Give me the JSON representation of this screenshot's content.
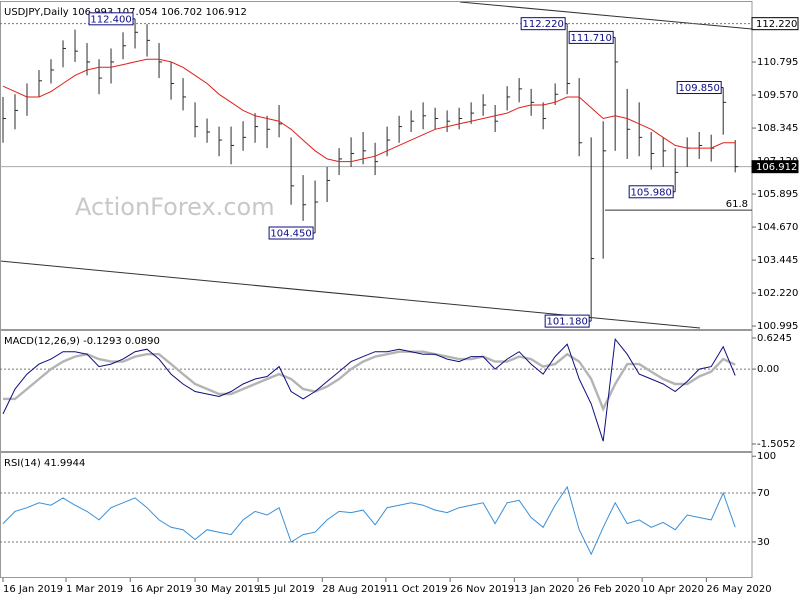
{
  "chart_data": [
    {
      "type": "ohlc",
      "title": "USDJPY,Daily  106.993 107.054 106.702 106.912",
      "watermark": "ActionForex.com",
      "color": "#2b2b2b",
      "high": [
        109.5,
        109.6,
        110.0,
        110.5,
        110.9,
        111.6,
        112.0,
        111.5,
        110.9,
        111.3,
        111.9,
        112.4,
        112.2,
        111.5,
        110.8,
        110.2,
        109.3,
        108.7,
        108.4,
        108.4,
        108.6,
        108.9,
        108.8,
        109.2,
        108.0,
        106.6,
        106.4,
        106.9,
        107.6,
        108.0,
        108.2,
        107.8,
        108.4,
        108.8,
        109.0,
        109.3,
        109.1,
        109.0,
        109.1,
        109.3,
        109.6,
        109.2,
        109.9,
        110.2,
        109.8,
        109.3,
        110.0,
        112.22,
        110.2,
        108.0,
        108.6,
        111.71,
        109.8,
        109.3,
        108.2,
        108.0,
        107.6,
        108.0,
        108.2,
        108.1,
        109.85,
        107.9
      ],
      "low": [
        107.8,
        108.3,
        108.8,
        109.5,
        110.0,
        110.6,
        110.8,
        110.3,
        109.6,
        110.0,
        110.9,
        111.3,
        111.0,
        110.2,
        109.4,
        109.0,
        108.0,
        107.8,
        107.3,
        107.0,
        107.5,
        107.8,
        107.6,
        108.0,
        105.5,
        104.9,
        104.45,
        105.6,
        106.6,
        106.9,
        107.0,
        106.6,
        107.3,
        107.8,
        108.2,
        108.3,
        108.3,
        108.2,
        108.3,
        108.5,
        108.8,
        108.2,
        109.0,
        109.3,
        108.8,
        108.3,
        109.2,
        109.6,
        107.3,
        101.18,
        103.5,
        107.5,
        107.2,
        107.3,
        106.8,
        106.9,
        105.98,
        106.9,
        107.2,
        107.1,
        108.1,
        106.7
      ],
      "close": [
        108.7,
        109.0,
        109.5,
        110.1,
        110.5,
        111.3,
        111.2,
        110.8,
        110.2,
        110.8,
        111.4,
        111.9,
        111.6,
        110.8,
        110.0,
        109.5,
        108.4,
        108.2,
        107.9,
        107.7,
        108.0,
        108.4,
        108.3,
        108.5,
        106.2,
        105.5,
        105.6,
        106.4,
        107.2,
        107.4,
        107.5,
        107.1,
        107.9,
        108.4,
        108.6,
        108.8,
        108.7,
        108.6,
        108.7,
        108.9,
        109.2,
        108.6,
        109.5,
        109.8,
        109.3,
        108.7,
        109.6,
        110.0,
        107.8,
        103.5,
        107.5,
        110.8,
        108.3,
        108.0,
        107.4,
        107.5,
        106.7,
        107.6,
        107.7,
        107.6,
        109.3,
        106.912
      ],
      "ma": {
        "color": "#e0201b",
        "values": [
          109.9,
          109.7,
          109.5,
          109.5,
          109.7,
          110.0,
          110.3,
          110.5,
          110.6,
          110.6,
          110.7,
          110.8,
          110.9,
          110.9,
          110.8,
          110.6,
          110.3,
          110.0,
          109.6,
          109.3,
          109.0,
          108.8,
          108.7,
          108.6,
          108.3,
          107.9,
          107.5,
          107.2,
          107.1,
          107.1,
          107.2,
          107.3,
          107.5,
          107.7,
          107.9,
          108.1,
          108.3,
          108.4,
          108.5,
          108.6,
          108.7,
          108.8,
          108.9,
          109.1,
          109.2,
          109.2,
          109.3,
          109.5,
          109.5,
          109.1,
          108.7,
          108.8,
          108.7,
          108.5,
          108.3,
          108.0,
          107.7,
          107.6,
          107.6,
          107.6,
          107.8,
          107.8
        ]
      },
      "xlim": [
        -0.25,
        62.4
      ],
      "ylim": [
        100.85,
        112.95
      ],
      "yticks": [
        110.795,
        {
          "value": 109.57,
          "label": "109.570"
        },
        108.345,
        {
          "value": 107.12,
          "label": "107.120"
        },
        105.895,
        {
          "value": 104.67,
          "label": "104.670"
        },
        103.445,
        {
          "value": 102.22,
          "label": "102.220"
        },
        100.995
      ],
      "annotations": [
        {
          "value": 112.4,
          "label": "112.400"
        },
        {
          "value": 104.45,
          "label": "104.450"
        },
        {
          "value": 112.22,
          "label": "112.220"
        },
        {
          "value": 111.71,
          "label": "111.710"
        },
        {
          "value": 109.85,
          "label": "109.850"
        },
        {
          "value": 105.98,
          "label": "105.980"
        },
        {
          "value": 101.18,
          "label": "101.180"
        }
      ],
      "levels": [
        {
          "value": 112.22,
          "label": "112.220",
          "style": "dotted"
        },
        {
          "value": 106.912,
          "label": "106.912",
          "style": "solid"
        }
      ],
      "fib": {
        "name": "61.8",
        "value": 105.3
      }
    },
    {
      "type": "macd",
      "title": "MACD(12,26,9) -0.1293 0.0890",
      "series": [
        {
          "color": "#0d0d80",
          "values": [
            -0.9,
            -0.4,
            -0.1,
            0.1,
            0.2,
            0.35,
            0.35,
            0.3,
            0.05,
            0.1,
            0.2,
            0.35,
            0.4,
            0.2,
            -0.1,
            -0.3,
            -0.45,
            -0.5,
            -0.55,
            -0.45,
            -0.3,
            -0.2,
            -0.15,
            0.05,
            -0.45,
            -0.6,
            -0.45,
            -0.25,
            -0.05,
            0.15,
            0.25,
            0.35,
            0.35,
            0.4,
            0.35,
            0.3,
            0.3,
            0.2,
            0.15,
            0.25,
            0.25,
            0.0,
            0.2,
            0.35,
            0.1,
            -0.1,
            0.25,
            0.5,
            -0.2,
            -0.7,
            -1.45,
            0.6,
            0.3,
            -0.1,
            -0.2,
            -0.3,
            -0.45,
            -0.25,
            0.0,
            0.05,
            0.45,
            -0.1293
          ]
        },
        {
          "color": "#b4b4b4",
          "values": [
            -0.6,
            -0.6,
            -0.4,
            -0.2,
            0.0,
            0.15,
            0.25,
            0.3,
            0.2,
            0.15,
            0.15,
            0.25,
            0.3,
            0.3,
            0.1,
            -0.1,
            -0.3,
            -0.4,
            -0.5,
            -0.5,
            -0.4,
            -0.3,
            -0.2,
            -0.1,
            -0.2,
            -0.4,
            -0.45,
            -0.35,
            -0.2,
            0.0,
            0.15,
            0.25,
            0.3,
            0.35,
            0.35,
            0.35,
            0.3,
            0.25,
            0.2,
            0.2,
            0.25,
            0.15,
            0.15,
            0.25,
            0.2,
            0.05,
            0.1,
            0.3,
            0.15,
            -0.2,
            -0.8,
            -0.3,
            0.1,
            0.1,
            -0.05,
            -0.2,
            -0.3,
            -0.3,
            -0.15,
            -0.05,
            0.2,
            0.089
          ]
        }
      ],
      "xlim": [
        -0.25,
        62.4
      ],
      "ylim": [
        -1.666,
        0.725
      ],
      "yticks": [
        0.6245,
        {
          "value": 0,
          "label": "0.00"
        },
        -1.5052
      ],
      "levels": [
        0
      ]
    },
    {
      "type": "rsi",
      "title": "RSI(14) 41.9944",
      "color": "#3a8fd6",
      "values": [
        45,
        55,
        58,
        62,
        60,
        66,
        60,
        55,
        48,
        58,
        62,
        66,
        58,
        48,
        42,
        40,
        32,
        40,
        38,
        36,
        48,
        55,
        52,
        58,
        30,
        36,
        38,
        48,
        55,
        54,
        56,
        44,
        58,
        60,
        62,
        60,
        56,
        54,
        58,
        60,
        62,
        45,
        62,
        64,
        50,
        42,
        60,
        75,
        40,
        20,
        42,
        62,
        45,
        48,
        42,
        46,
        40,
        52,
        50,
        48,
        70,
        41.9944
      ],
      "xlim": [
        -0.25,
        62.4
      ],
      "ylim": [
        0.6,
        101
      ],
      "yticks": [
        100,
        70,
        30
      ],
      "levels": [
        70,
        30
      ],
      "xticks": [
        {
          "value": 0,
          "label": "16 Jan 2019"
        },
        {
          "value": 5.25,
          "label": "1 Mar 2019"
        },
        {
          "value": 10.6,
          "label": "16 Apr 2019"
        },
        {
          "value": 16,
          "label": "30 May 2019"
        },
        {
          "value": 21.25,
          "label": "15 Jul 2019"
        },
        {
          "value": 26.6,
          "label": "28 Aug 2019"
        },
        {
          "value": 31.9,
          "label": "11 Oct 2019"
        },
        {
          "value": 37.25,
          "label": "26 Nov 2019"
        },
        {
          "value": 42.6,
          "label": "13 Jan 2020"
        },
        {
          "value": 47.9,
          "label": "26 Feb 2020"
        },
        {
          "value": 53.25,
          "label": "10 Apr 2020"
        },
        {
          "value": 58.6,
          "label": "26 May 2020"
        }
      ]
    }
  ]
}
